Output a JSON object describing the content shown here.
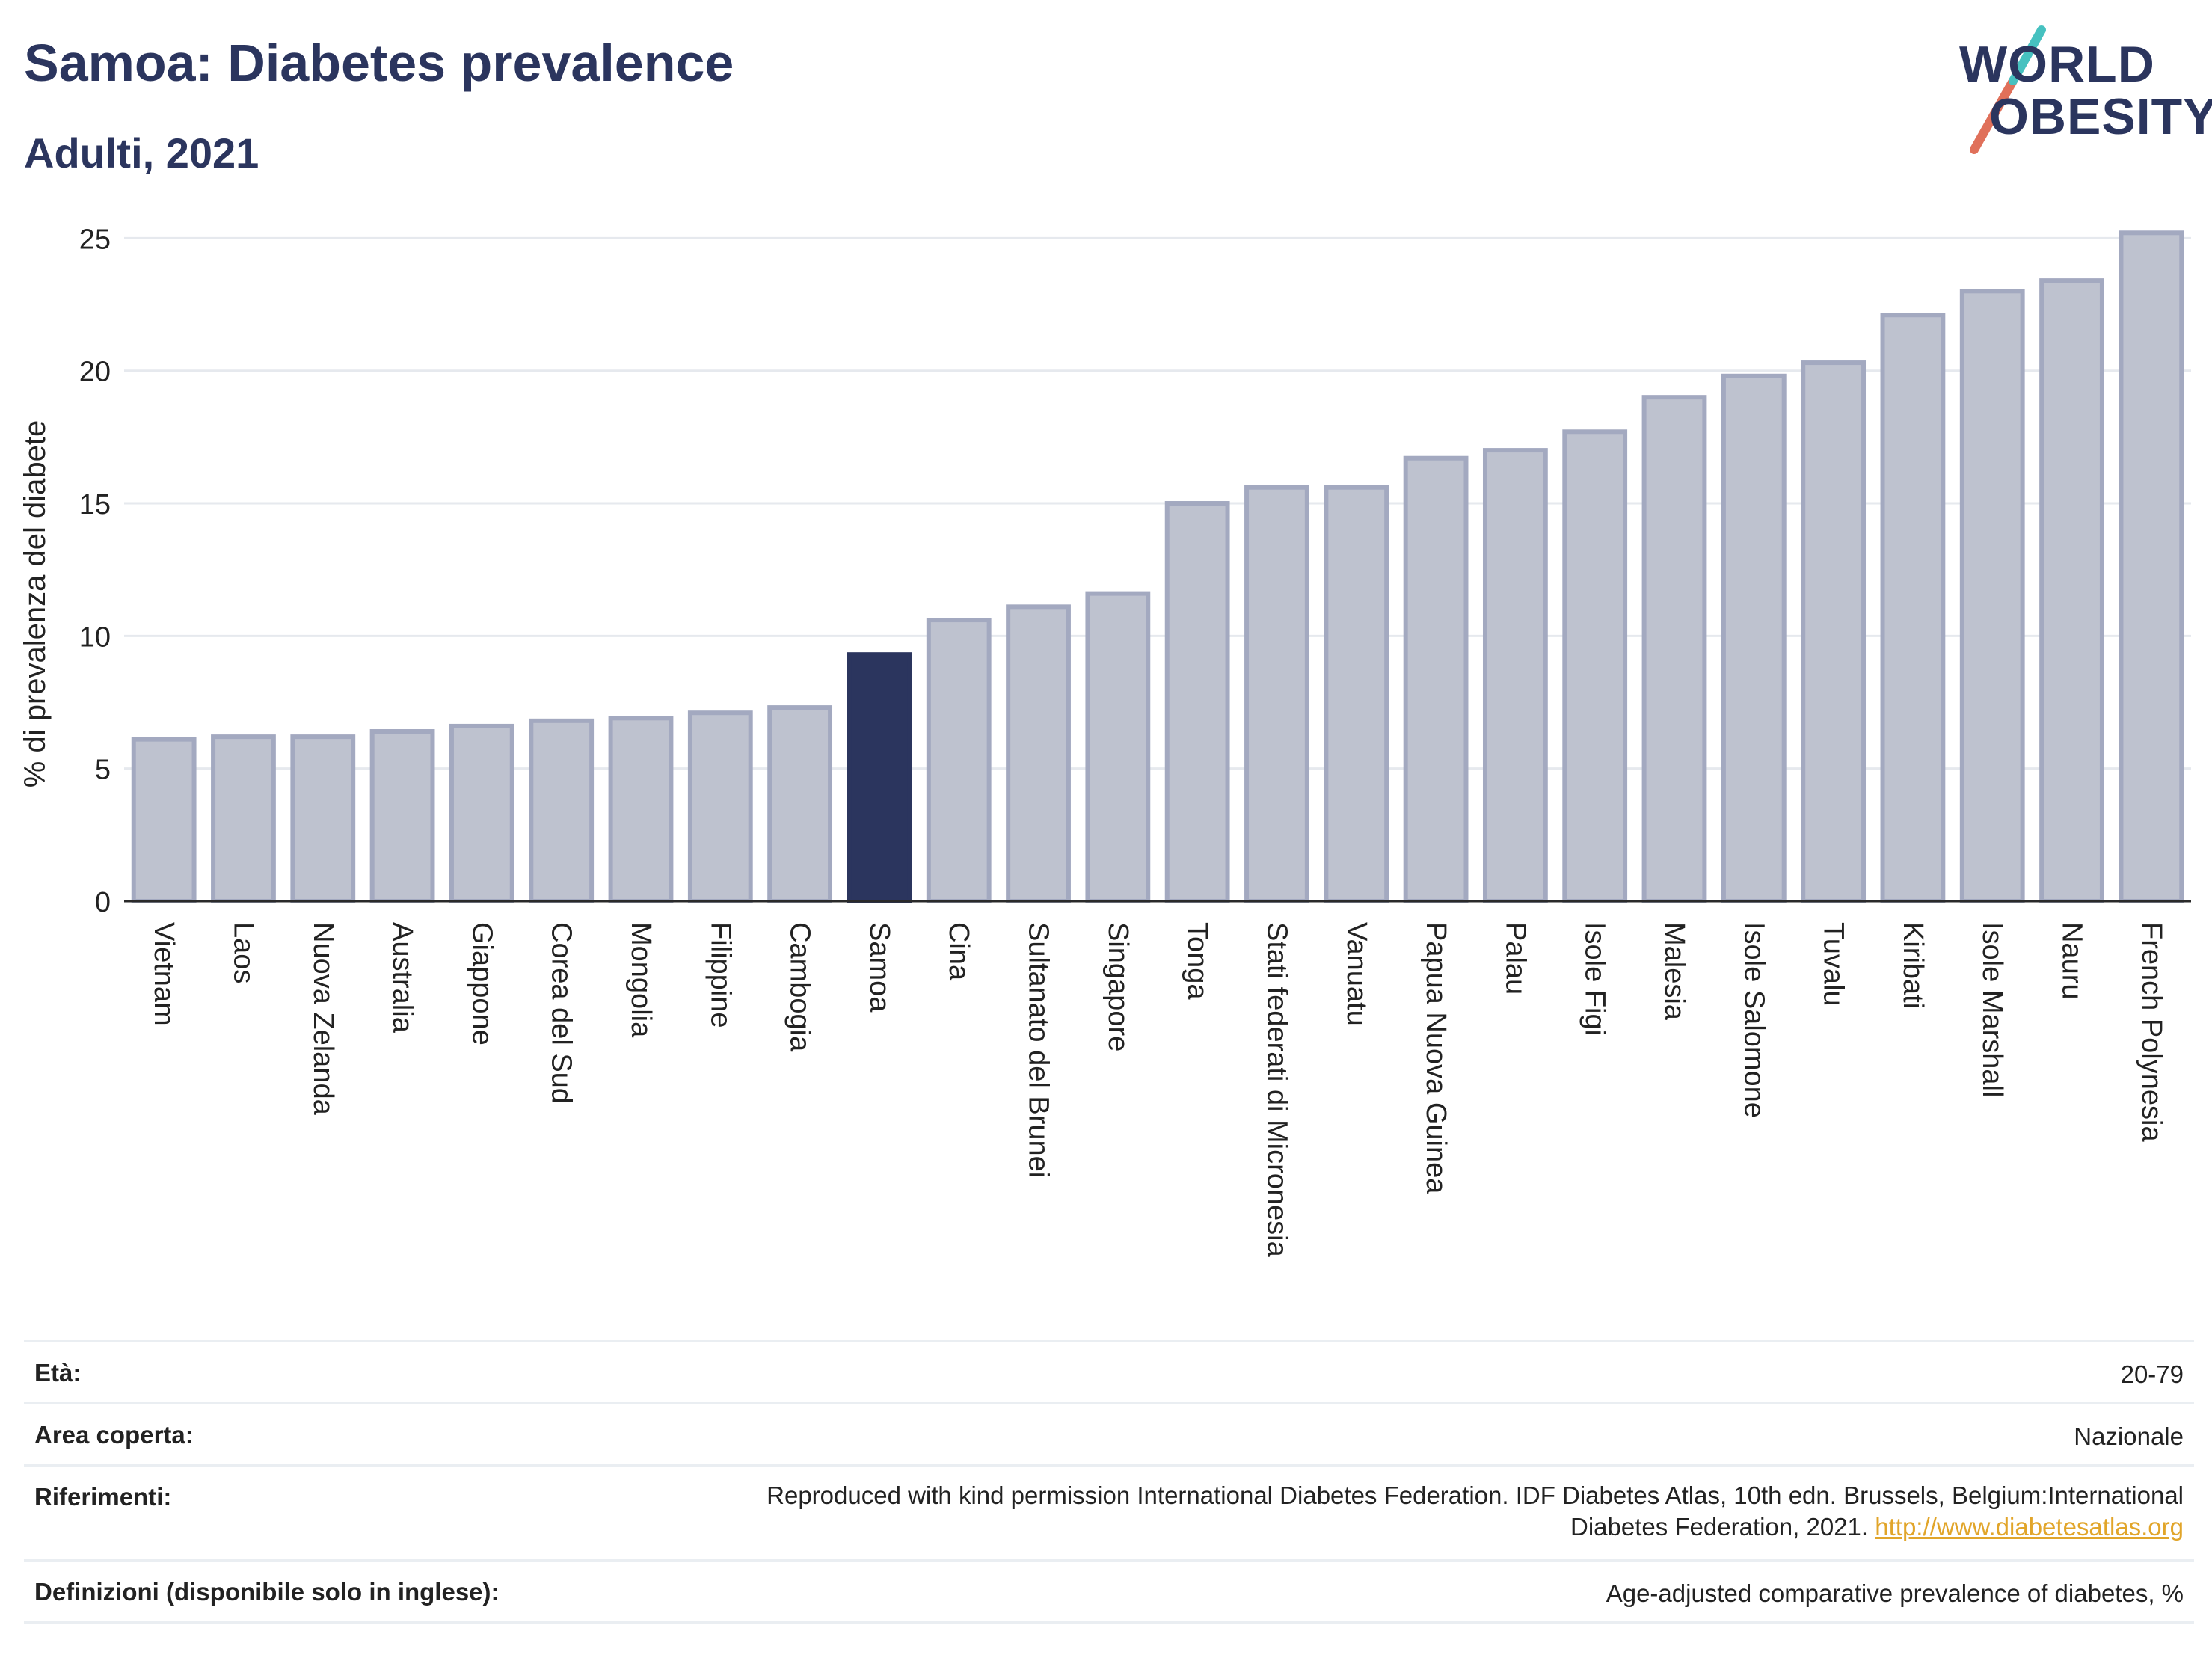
{
  "header": {
    "title": "Samoa: Diabetes prevalence",
    "subtitle": "Adulti, 2021"
  },
  "logo": {
    "line1": "WORLD",
    "line2": "OBESITY",
    "accent_colors": [
      "#46c1c0",
      "#e0705a"
    ]
  },
  "colors": {
    "bar": "#bec2cf",
    "bar_border": "#a3a9c0",
    "highlight": "#2b355e",
    "axis_text": "#222222",
    "grid": "#e6e9ee",
    "link": "#e1a52a"
  },
  "chart_data": {
    "type": "bar",
    "ylabel": "% di prevalenza del diabete",
    "ylim": [
      0,
      25.8
    ],
    "yticks": [
      0,
      5,
      10,
      15,
      20,
      25
    ],
    "grid": true,
    "highlight": "Samoa",
    "categories": [
      "Vietnam",
      "Laos",
      "Nuova Zelanda",
      "Australia",
      "Giappone",
      "Corea del Sud",
      "Mongolia",
      "Filippine",
      "Cambogia",
      "Samoa",
      "Cina",
      "Sultanato del Brunei",
      "Singapore",
      "Tonga",
      "Stati federati di Micronesia",
      "Vanuatu",
      "Papua Nuova Guinea",
      "Palau",
      "Isole Figi",
      "Malesia",
      "Isole Salomone",
      "Tuvalu",
      "Kiribati",
      "Isole Marshall",
      "Nauru",
      "French Polynesia"
    ],
    "values": [
      6.1,
      6.2,
      6.2,
      6.4,
      6.6,
      6.8,
      6.9,
      7.1,
      7.3,
      9.3,
      10.6,
      11.1,
      11.6,
      15.0,
      15.6,
      15.6,
      16.7,
      17.0,
      17.7,
      19.0,
      19.8,
      20.3,
      22.1,
      23.0,
      23.4,
      25.2
    ]
  },
  "info": [
    {
      "label": "Età:",
      "value": "20-79"
    },
    {
      "label": "Area coperta:",
      "value": "Nazionale"
    },
    {
      "label": "Riferimenti:",
      "value_line1": "Reproduced with kind permission International Diabetes Federation.  IDF Diabetes Atlas, 10th edn. Brussels, Belgium:International",
      "value_line2": "Diabetes Federation, 2021.",
      "link": "http://www.diabetesatlas.org"
    },
    {
      "label": "Definizioni (disponibile solo in inglese):",
      "value": "Age-adjusted comparative prevalence of diabetes, %"
    }
  ]
}
